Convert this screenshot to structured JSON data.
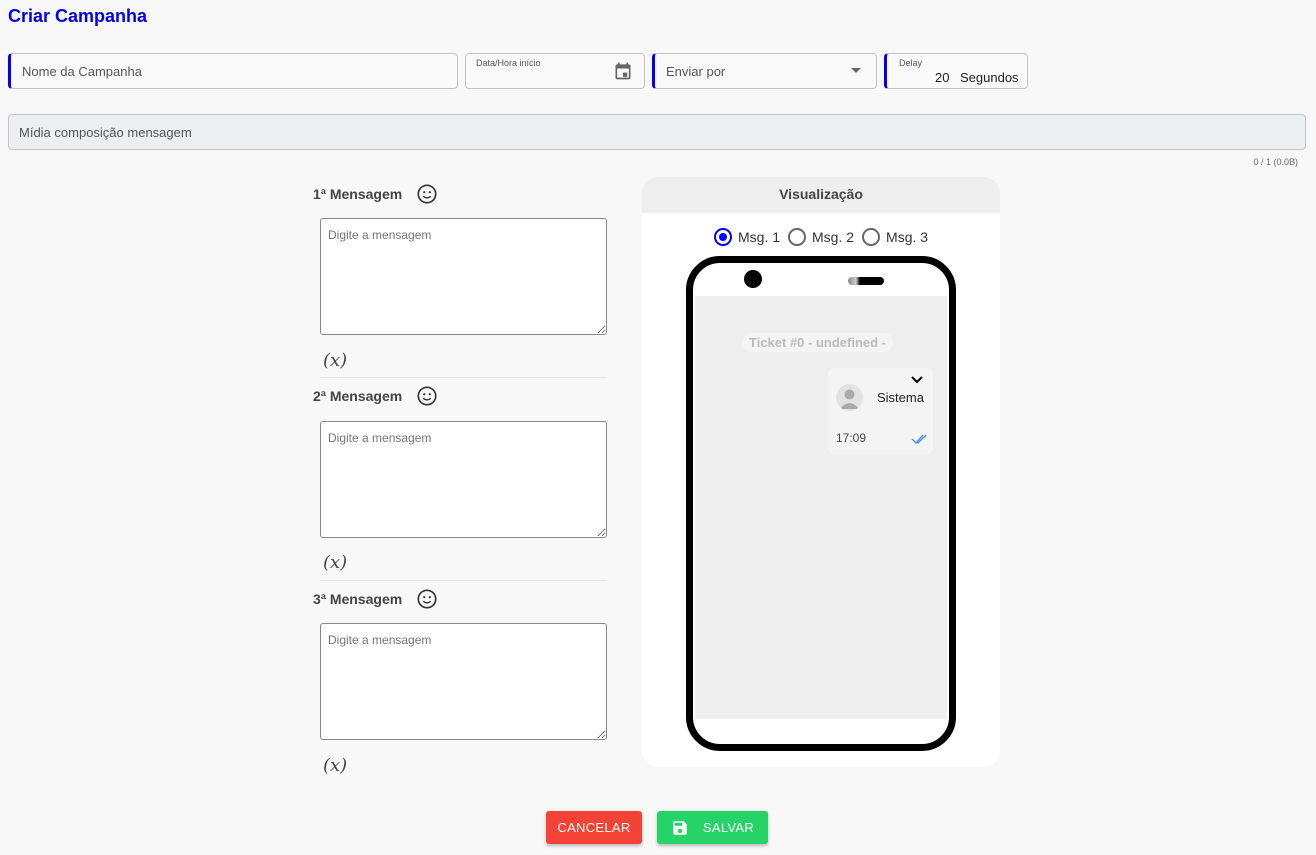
{
  "page": {
    "title": "Criar Campanha"
  },
  "form": {
    "name_placeholder": "Nome da Campanha",
    "start_label": "Data/Hora início",
    "send_by_placeholder": "Enviar por",
    "delay_label": "Delay",
    "delay_value": "20",
    "delay_unit": "Segundos",
    "media_placeholder": "Mídia composição mensagem",
    "media_count": "0 / 1 (0.0B)"
  },
  "messages": [
    {
      "label": "1ª Mensagem",
      "placeholder": "Digite a mensagem",
      "var": "(x)"
    },
    {
      "label": "2ª Mensagem",
      "placeholder": "Digite a mensagem",
      "var": "(x)"
    },
    {
      "label": "3ª Mensagem",
      "placeholder": "Digite a mensagem",
      "var": "(x)"
    }
  ],
  "preview": {
    "title": "Visualização",
    "options": [
      "Msg. 1",
      "Msg. 2",
      "Msg. 3"
    ],
    "selected": "Msg. 1",
    "ticket": "Ticket #0 - undefined -",
    "sender": "Sistema",
    "time": "17:09"
  },
  "actions": {
    "cancel": "CANCELAR",
    "save": "SALVAR"
  },
  "colors": {
    "accent": "#0000ff",
    "cancel": "#f44336",
    "save": "#25d366",
    "read_ticks": "#4a90e2"
  }
}
